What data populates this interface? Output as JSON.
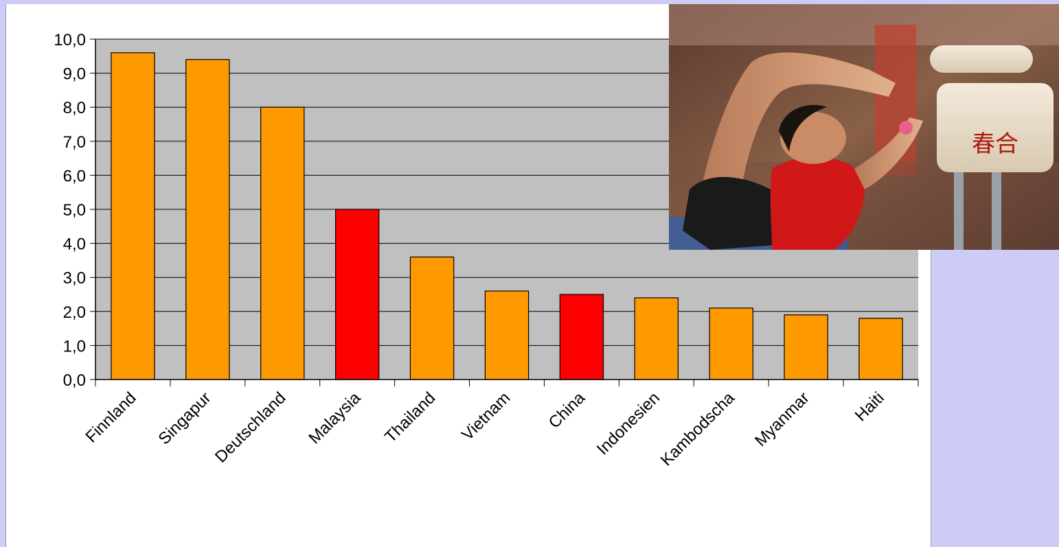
{
  "chart_data": {
    "type": "bar",
    "title": "",
    "xlabel": "",
    "ylabel": "",
    "ylim": [
      0,
      10
    ],
    "yticks": [
      "0,0",
      "1,0",
      "2,0",
      "3,0",
      "4,0",
      "5,0",
      "6,0",
      "7,0",
      "8,0",
      "9,0",
      "10,0"
    ],
    "grid": true,
    "plot_background": "#c0c0c0",
    "categories": [
      "Finnland",
      "Singapur",
      "Deutschland",
      "Malaysia",
      "Thailand",
      "Vietnam",
      "China",
      "Indonesien",
      "Kambodscha",
      "Myanmar",
      "Haiti"
    ],
    "values": [
      9.6,
      9.4,
      8.0,
      5.0,
      3.6,
      2.6,
      2.5,
      2.4,
      2.1,
      1.9,
      1.8
    ],
    "bar_colors": [
      "#ff9900",
      "#ff9900",
      "#ff9900",
      "#ff0000",
      "#ff9900",
      "#ff9900",
      "#ff0000",
      "#ff9900",
      "#ff9900",
      "#ff9900",
      "#ff9900"
    ]
  },
  "photo": {
    "pommel_characters": "春合"
  }
}
